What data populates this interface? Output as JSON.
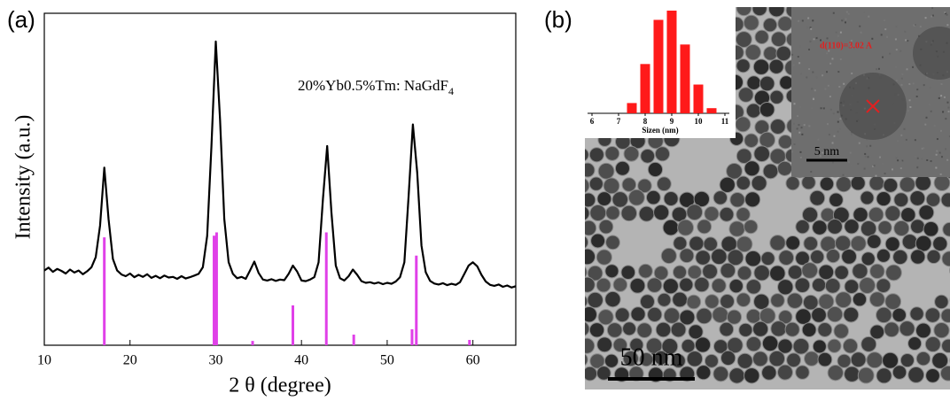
{
  "panels": {
    "a": "(a)",
    "b": "(b)"
  },
  "chart_data": [
    {
      "type": "line",
      "xlabel": "2 θ (degree)",
      "ylabel": "Intensity (a.u.)",
      "annotation": "20%Yb0.5%Tm: NaGdF",
      "annotation_subscript": "4",
      "color": "#000000",
      "xlim": [
        10,
        65
      ],
      "xticks": [
        10,
        20,
        30,
        40,
        50,
        60
      ],
      "ylim": [
        0,
        100
      ],
      "x": [
        10,
        10.5,
        11,
        11.5,
        12,
        12.5,
        13,
        13.5,
        14,
        14.5,
        15,
        15.5,
        16,
        16.5,
        17,
        17.5,
        18,
        18.5,
        19,
        19.5,
        20,
        20.5,
        21,
        21.5,
        22,
        22.5,
        23,
        23.5,
        24,
        24.5,
        25,
        25.5,
        26,
        26.5,
        27,
        27.5,
        28,
        28.5,
        29,
        29.5,
        30,
        30.5,
        31,
        31.5,
        32,
        32.5,
        33,
        33.5,
        34,
        34.5,
        35,
        35.5,
        36,
        36.5,
        37,
        37.5,
        38,
        38.5,
        39,
        39.5,
        40,
        40.5,
        41,
        41.5,
        42,
        42.5,
        43,
        43.5,
        44,
        44.5,
        45,
        45.5,
        46,
        46.5,
        47,
        47.5,
        48,
        48.5,
        49,
        49.5,
        50,
        50.5,
        51,
        51.5,
        52,
        52.5,
        53,
        53.5,
        54,
        54.5,
        55,
        55.5,
        56,
        56.5,
        57,
        57.5,
        58,
        58.5,
        59,
        59.5,
        60,
        60.5,
        61,
        61.5,
        62,
        62.5,
        63,
        63.5,
        64,
        64.5,
        65
      ],
      "values": [
        22.5,
        23.4,
        22.1,
        23.0,
        22.4,
        21.6,
        22.8,
        21.9,
        22.5,
        21.4,
        22.3,
        23.5,
        26.5,
        36,
        53.5,
        38,
        26,
        22.5,
        21.3,
        20.8,
        21.6,
        20.5,
        21.2,
        20.6,
        21.4,
        20.3,
        20.9,
        20.2,
        21.0,
        20.4,
        20.6,
        20.0,
        20.8,
        20.1,
        20.5,
        21.0,
        21.5,
        23.5,
        33,
        60,
        91.5,
        68,
        38,
        25,
        21.5,
        20.2,
        20.6,
        20.0,
        22.5,
        25.2,
        21.8,
        19.8,
        19.5,
        19.9,
        19.4,
        19.8,
        19.6,
        21.5,
        24,
        22.2,
        19.5,
        19.3,
        19.8,
        20.5,
        25,
        44,
        60,
        40,
        24,
        20.2,
        19.5,
        20.8,
        22.8,
        21.2,
        19.3,
        18.8,
        19.0,
        18.6,
        18.9,
        18.4,
        18.8,
        18.5,
        19.2,
        20.5,
        25,
        45,
        66.5,
        52,
        30,
        22,
        19.4,
        18.6,
        18.3,
        18.7,
        18.1,
        18.5,
        18.2,
        19.0,
        21.5,
        24,
        25,
        23.8,
        21.2,
        19.2,
        18.2,
        17.9,
        18.3,
        17.6,
        18.0,
        17.4,
        17.8
      ],
      "sticks": {
        "color": "#e040e8",
        "x": [
          17.0,
          29.8,
          30.1,
          34.3,
          39.0,
          42.9,
          46.1,
          52.9,
          53.4,
          59.6
        ],
        "values": [
          32.5,
          33,
          34,
          1.3,
          12,
          34,
          3.2,
          4.8,
          27,
          1.6
        ]
      }
    },
    {
      "type": "histogram",
      "xlabel": "Sizen (nm)",
      "color": "#ff1a1a",
      "xlim": [
        6,
        11
      ],
      "xticks": [
        6,
        7,
        8,
        9,
        10,
        11
      ],
      "ylim": [
        0,
        100
      ],
      "bins": [
        7.25,
        7.75,
        8.25,
        8.75,
        9.25,
        9.75,
        10.25,
        10.75
      ],
      "values": [
        10,
        48,
        91,
        100,
        67,
        28,
        5
      ]
    }
  ],
  "tem_image": {
    "scale_bar": "50 nm",
    "hrtem_scale_bar": "5 nm",
    "d_spacing": "d(110)=3.02 A"
  }
}
